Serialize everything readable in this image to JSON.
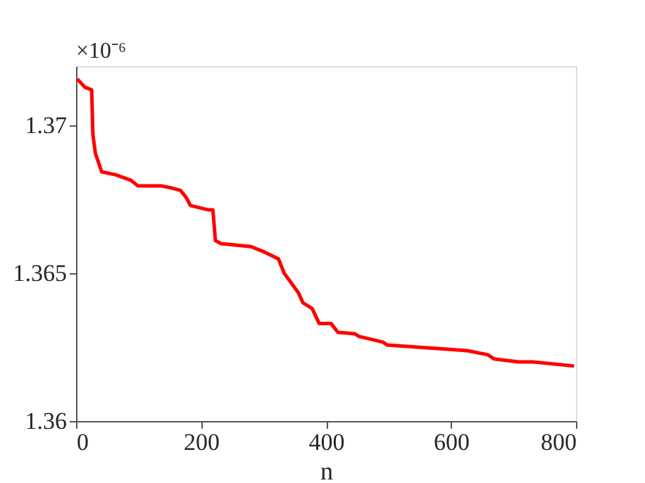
{
  "chart_data": {
    "type": "line",
    "xlabel": "n",
    "annotations": [
      "×10⁻⁶"
    ],
    "xlim": [
      0,
      800
    ],
    "xticks": [
      0,
      200,
      400,
      600,
      800
    ],
    "ylim": [
      1.36,
      1.372
    ],
    "yticks": [
      1.36,
      1.365,
      1.37
    ],
    "grid": false,
    "marker": "none",
    "line_style": "solid",
    "series": [
      {
        "color": "#ff0000",
        "x": [
          2,
          14,
          25,
          27,
          31,
          41,
          63,
          88,
          99,
          137,
          149,
          167,
          176,
          183,
          212,
          219,
          223,
          232,
          280,
          302,
          324,
          333,
          356,
          363,
          378,
          389,
          408,
          419,
          446,
          453,
          491,
          498,
          558,
          626,
          659,
          669,
          708,
          730,
          797
        ],
        "values": [
          1.37157,
          1.37129,
          1.3712,
          1.36967,
          1.36905,
          1.36843,
          1.36833,
          1.36814,
          1.36795,
          1.36795,
          1.3679,
          1.3678,
          1.36757,
          1.36729,
          1.36714,
          1.36714,
          1.3661,
          1.366,
          1.3659,
          1.36571,
          1.36548,
          1.365,
          1.36433,
          1.364,
          1.3638,
          1.3633,
          1.3633,
          1.363,
          1.36295,
          1.36286,
          1.36267,
          1.36257,
          1.36248,
          1.36238,
          1.36224,
          1.3621,
          1.362,
          1.362,
          1.36186
        ]
      }
    ]
  }
}
